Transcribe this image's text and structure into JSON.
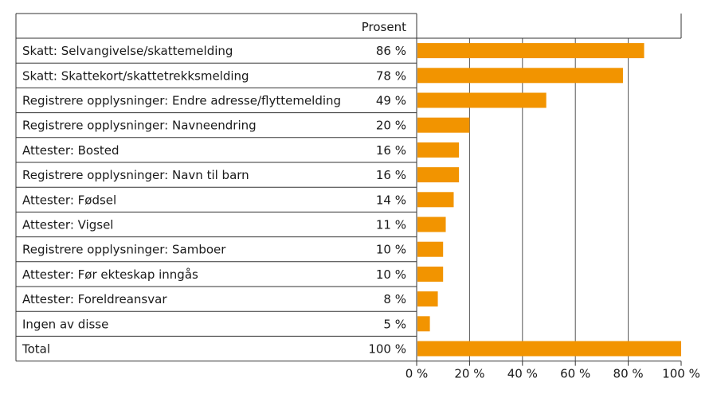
{
  "chart_data": {
    "type": "bar",
    "orientation": "horizontal",
    "column_header": "Prosent",
    "categories": [
      "Skatt: Selvangivelse/skattemelding",
      "Skatt: Skattekort/skattetrekksmelding",
      "Registrere opplysninger: Endre adresse/flyttemelding",
      "Registrere opplysninger: Navneendring",
      "Attester: Bosted",
      "Registrere opplysninger: Navn til barn",
      "Attester: Fødsel",
      "Attester: Vigsel",
      "Registrere opplysninger: Samboer",
      "Attester: Før ekteskap inngås",
      "Attester: Foreldreansvar",
      "Ingen av disse",
      "Total"
    ],
    "values": [
      86,
      78,
      49,
      20,
      16,
      16,
      14,
      11,
      10,
      10,
      8,
      5,
      100
    ],
    "value_labels": [
      "86 %",
      "78 %",
      "49 %",
      "20 %",
      "16 %",
      "16 %",
      "14 %",
      "11 %",
      "10 %",
      "10 %",
      "8 %",
      "5 %",
      "100 %"
    ],
    "xlim": [
      0,
      100
    ],
    "ticks": [
      0,
      20,
      40,
      60,
      80,
      100
    ],
    "tick_labels": [
      "0 %",
      "20 %",
      "40 %",
      "60 %",
      "80 %",
      "100 %"
    ],
    "grid": true,
    "bar_color": "#f29400"
  }
}
